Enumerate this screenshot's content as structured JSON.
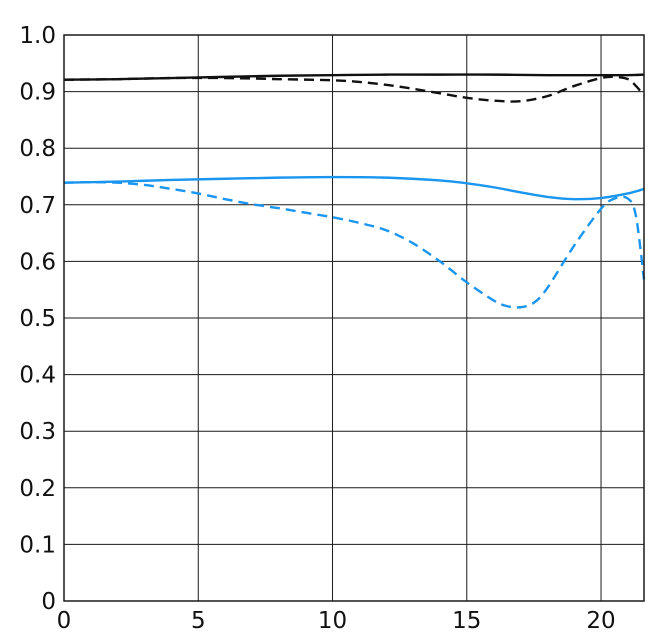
{
  "chart_data": {
    "type": "line",
    "title": "",
    "xlabel": "",
    "ylabel": "",
    "xlim": [
      0,
      21.6
    ],
    "ylim": [
      0,
      1.0
    ],
    "grid": true,
    "x_ticks": [
      0,
      5,
      10,
      15,
      20
    ],
    "x_tick_labels": [
      "0",
      "5",
      "10",
      "15",
      "20"
    ],
    "y_ticks": [
      0,
      0.1,
      0.2,
      0.3,
      0.4,
      0.5,
      0.6,
      0.7,
      0.8,
      0.9,
      1.0
    ],
    "y_tick_labels": [
      "0",
      "0.1",
      "0.2",
      "0.3",
      "0.4",
      "0.5",
      "0.6",
      "0.7",
      "0.8",
      "0.9",
      "1.0"
    ],
    "series": [
      {
        "color": "#111111",
        "dash": "solid",
        "x": [
          0,
          2,
          4,
          6,
          8,
          10,
          12,
          14,
          16,
          18,
          19,
          20,
          21,
          21.6
        ],
        "y": [
          0.921,
          0.922,
          0.924,
          0.926,
          0.928,
          0.929,
          0.93,
          0.93,
          0.93,
          0.929,
          0.929,
          0.929,
          0.929,
          0.93
        ]
      },
      {
        "color": "#111111",
        "dash": "dashed",
        "x": [
          0,
          2,
          4,
          6,
          8,
          10,
          11,
          12,
          13,
          14,
          15,
          16,
          17,
          18,
          19,
          20,
          20.5,
          21,
          21.3,
          21.6
        ],
        "y": [
          0.921,
          0.922,
          0.924,
          0.924,
          0.922,
          0.92,
          0.917,
          0.912,
          0.905,
          0.897,
          0.889,
          0.884,
          0.883,
          0.892,
          0.91,
          0.924,
          0.926,
          0.922,
          0.91,
          0.893
        ]
      },
      {
        "color": "#1a96f0",
        "dash": "solid",
        "x": [
          0,
          2,
          4,
          6,
          8,
          10,
          12,
          14,
          15,
          16,
          17,
          18,
          19,
          20,
          21,
          21.6
        ],
        "y": [
          0.739,
          0.741,
          0.744,
          0.746,
          0.748,
          0.749,
          0.748,
          0.743,
          0.738,
          0.731,
          0.722,
          0.714,
          0.71,
          0.712,
          0.72,
          0.728
        ]
      },
      {
        "color": "#1a96f0",
        "dash": "dashed",
        "x": [
          0,
          1,
          2,
          3,
          4,
          5,
          6,
          7,
          8,
          9,
          10,
          11,
          12,
          13,
          14,
          15,
          16,
          16.5,
          17,
          17.5,
          18,
          19,
          20,
          20.5,
          21,
          21.3,
          21.6
        ],
        "y": [
          0.739,
          0.74,
          0.739,
          0.735,
          0.728,
          0.72,
          0.71,
          0.701,
          0.694,
          0.686,
          0.678,
          0.668,
          0.655,
          0.632,
          0.6,
          0.563,
          0.531,
          0.521,
          0.519,
          0.527,
          0.553,
          0.628,
          0.693,
          0.711,
          0.711,
          0.68,
          0.568
        ]
      }
    ]
  }
}
